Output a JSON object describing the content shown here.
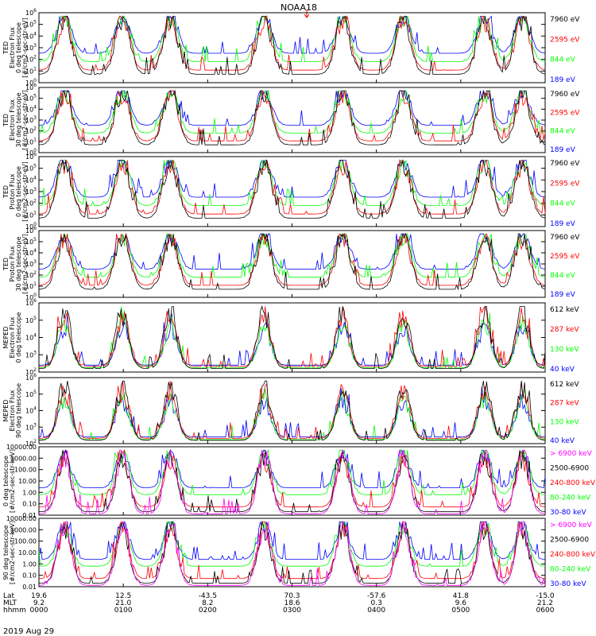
{
  "title": "NOAA18",
  "date_label": "2019 Aug 29",
  "colors": {
    "black": "#000000",
    "red": "#ff0000",
    "green": "#00ff00",
    "blue": "#0000ff",
    "magenta": "#ff00ff"
  },
  "time_axis": {
    "rows": [
      {
        "label": "Lat",
        "values": [
          "19.6",
          "12.5",
          "-43.5",
          "70.3",
          "-57.6",
          "41.8",
          "-15.0"
        ]
      },
      {
        "label": "MLT",
        "values": [
          "9.2",
          "21.0",
          "8.2",
          "18.6",
          "0.3",
          "9.6",
          "21.2"
        ]
      },
      {
        "label": "hhmm",
        "values": [
          "0000",
          "0100",
          "0200",
          "0300",
          "0400",
          "0500",
          "0600"
        ]
      }
    ]
  },
  "chart_data": [
    {
      "type": "line",
      "ylabel_lines": [
        "TED",
        "Electron Flux",
        "0 deg telescope",
        "[#/cm2-sec-str-eV]"
      ],
      "yscale": "log",
      "ylim": [
        1,
        1000000
      ],
      "ytick_labels": [
        "10^0",
        "10^1",
        "10^2",
        "10^3",
        "10^4",
        "10^5",
        "10^6"
      ],
      "series": [
        {
          "name": "7960 eV",
          "color": "#000000"
        },
        {
          "name": "2595 eV",
          "color": "#ff0000"
        },
        {
          "name": "844 eV",
          "color": "#00ff00"
        },
        {
          "name": "189 eV",
          "color": "#0000ff"
        }
      ]
    },
    {
      "type": "line",
      "ylabel_lines": [
        "TED",
        "Electron Flux",
        "30 deg telescope",
        "[#/cm2-sec-str-eV]"
      ],
      "yscale": "log",
      "ylim": [
        1,
        1000000
      ],
      "ytick_labels": [
        "10^0",
        "10^1",
        "10^2",
        "10^3",
        "10^4",
        "10^5",
        "10^6"
      ],
      "series": [
        {
          "name": "7960 eV",
          "color": "#000000"
        },
        {
          "name": "2595 eV",
          "color": "#ff0000"
        },
        {
          "name": "844 eV",
          "color": "#00ff00"
        },
        {
          "name": "189 eV",
          "color": "#0000ff"
        }
      ]
    },
    {
      "type": "line",
      "ylabel_lines": [
        "TED",
        "Proton Flux",
        "0 deg telescope",
        "[#/cm2-sec-str-eV]"
      ],
      "yscale": "log",
      "ylim": [
        1,
        1000000
      ],
      "ytick_labels": [
        "10^0",
        "10^1",
        "10^2",
        "10^3",
        "10^4",
        "10^5",
        "10^6"
      ],
      "series": [
        {
          "name": "7960 eV",
          "color": "#000000"
        },
        {
          "name": "2595 eV",
          "color": "#ff0000"
        },
        {
          "name": "844 eV",
          "color": "#00ff00"
        },
        {
          "name": "189 eV",
          "color": "#0000ff"
        }
      ]
    },
    {
      "type": "line",
      "ylabel_lines": [
        "TED",
        "Proton Flux",
        "30 deg telescope",
        "[#/cm2-sec-str-eV]"
      ],
      "yscale": "log",
      "ylim": [
        1,
        1000000
      ],
      "ytick_labels": [
        "10^0",
        "10^1",
        "10^2",
        "10^3",
        "10^4",
        "10^5",
        "10^6"
      ],
      "series": [
        {
          "name": "7960 eV",
          "color": "#000000"
        },
        {
          "name": "2595 eV",
          "color": "#ff0000"
        },
        {
          "name": "844 eV",
          "color": "#00ff00"
        },
        {
          "name": "189 eV",
          "color": "#0000ff"
        }
      ]
    },
    {
      "type": "line",
      "ylabel_lines": [
        "MEPED",
        "Electron Flux",
        "0 deg telescope"
      ],
      "yscale": "log",
      "ylim": [
        100,
        1000000
      ],
      "ytick_labels": [
        "10^2",
        "10^3",
        "10^4",
        "10^5",
        "10^6"
      ],
      "series": [
        {
          "name": "612 keV",
          "color": "#000000"
        },
        {
          "name": "287 keV",
          "color": "#ff0000"
        },
        {
          "name": "130 keV",
          "color": "#00ff00"
        },
        {
          "name": "40 keV",
          "color": "#0000ff"
        }
      ]
    },
    {
      "type": "line",
      "ylabel_lines": [
        "MEPED",
        "Electron Flux",
        "90 deg telescope"
      ],
      "yscale": "log",
      "ylim": [
        100,
        1000000
      ],
      "ytick_labels": [
        "10^2",
        "10^3",
        "10^4",
        "10^5",
        "10^6"
      ],
      "series": [
        {
          "name": "612 keV",
          "color": "#000000"
        },
        {
          "name": "287 keV",
          "color": "#ff0000"
        },
        {
          "name": "130 keV",
          "color": "#00ff00"
        },
        {
          "name": "40 keV",
          "color": "#0000ff"
        }
      ]
    },
    {
      "type": "line",
      "ylabel_lines": [
        "0 deg telescope",
        "[#/cm2-sec-str-keV]"
      ],
      "yscale": "log",
      "ylim": [
        0.01,
        10000
      ],
      "ytick_labels": [
        "0.01",
        "0.10",
        "1.00",
        "10.00",
        "100.00",
        "1000.00",
        "10000.00"
      ],
      "series": [
        {
          "name": "> 6900 keV",
          "color": "#ff00ff"
        },
        {
          "name": "2500-6900",
          "color": "#000000"
        },
        {
          "name": "240-800 keV",
          "color": "#ff0000"
        },
        {
          "name": "80-240 keV",
          "color": "#00ff00"
        },
        {
          "name": "30-80 keV",
          "color": "#0000ff"
        }
      ]
    },
    {
      "type": "line",
      "ylabel_lines": [
        "90 deg telescope",
        "[#/cm2-sec-str-keV]"
      ],
      "yscale": "log",
      "ylim": [
        0.01,
        10000
      ],
      "ytick_labels": [
        "0.01",
        "0.10",
        "1.00",
        "10.00",
        "100.00",
        "1000.00",
        "10000.00"
      ],
      "series": [
        {
          "name": "> 6900 keV",
          "color": "#ff00ff"
        },
        {
          "name": "2500-6900",
          "color": "#000000"
        },
        {
          "name": "240-800 keV",
          "color": "#ff0000"
        },
        {
          "name": "80-240 keV",
          "color": "#00ff00"
        },
        {
          "name": "30-80 keV",
          "color": "#0000ff"
        }
      ]
    }
  ]
}
